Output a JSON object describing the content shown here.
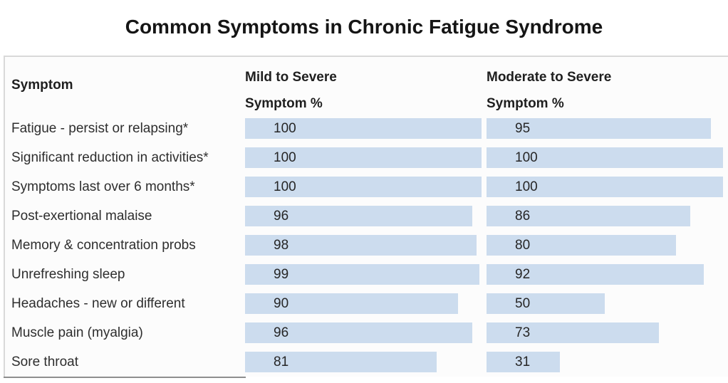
{
  "title": "Common Symptoms in Chronic Fatigue Syndrome",
  "table": {
    "header": {
      "symptom": "Symptom",
      "mild1": "Mild to Severe",
      "mild2": "Symptom %",
      "moderate1": "Moderate to Severe",
      "moderate2": "Symptom %"
    },
    "rows": [
      {
        "symptom": "Fatigue - persist or relapsing*",
        "mild": 100,
        "moderate": 95
      },
      {
        "symptom": "Significant reduction in activities*",
        "mild": 100,
        "moderate": 100
      },
      {
        "symptom": "Symptoms last over 6 months*",
        "mild": 100,
        "moderate": 100
      },
      {
        "symptom": "Post-exertional malaise",
        "mild": 96,
        "moderate": 86
      },
      {
        "symptom": "Memory & concentration probs",
        "mild": 98,
        "moderate": 80
      },
      {
        "symptom": "Unrefreshing sleep",
        "mild": 99,
        "moderate": 92
      },
      {
        "symptom": "Headaches - new or different",
        "mild": 90,
        "moderate": 50
      },
      {
        "symptom": "Muscle pain (myalgia)",
        "mild": 96,
        "moderate": 73
      },
      {
        "symptom": "Sore throat",
        "mild": 81,
        "moderate": 31
      }
    ]
  },
  "chart_data": {
    "type": "bar",
    "title": "Common Symptoms in Chronic Fatigue Syndrome",
    "categories": [
      "Fatigue - persist or relapsing*",
      "Significant reduction in activities*",
      "Symptoms last over 6 months*",
      "Post-exertional malaise",
      "Memory & concentration probs",
      "Unrefreshing sleep",
      "Headaches - new or different",
      "Muscle pain (myalgia)",
      "Sore throat"
    ],
    "series": [
      {
        "name": "Mild to Severe Symptom %",
        "values": [
          100,
          100,
          100,
          96,
          98,
          99,
          90,
          96,
          81
        ]
      },
      {
        "name": "Moderate to Severe Symptom %",
        "values": [
          95,
          100,
          100,
          86,
          80,
          92,
          50,
          73,
          31
        ]
      }
    ],
    "xlabel": "",
    "ylabel": "",
    "xlim": [
      0,
      100
    ],
    "grid": false,
    "legend_position": "column-headers",
    "orientation": "horizontal",
    "bar_color": "#ccdcee",
    "value_labels": "inside-bar-left"
  }
}
